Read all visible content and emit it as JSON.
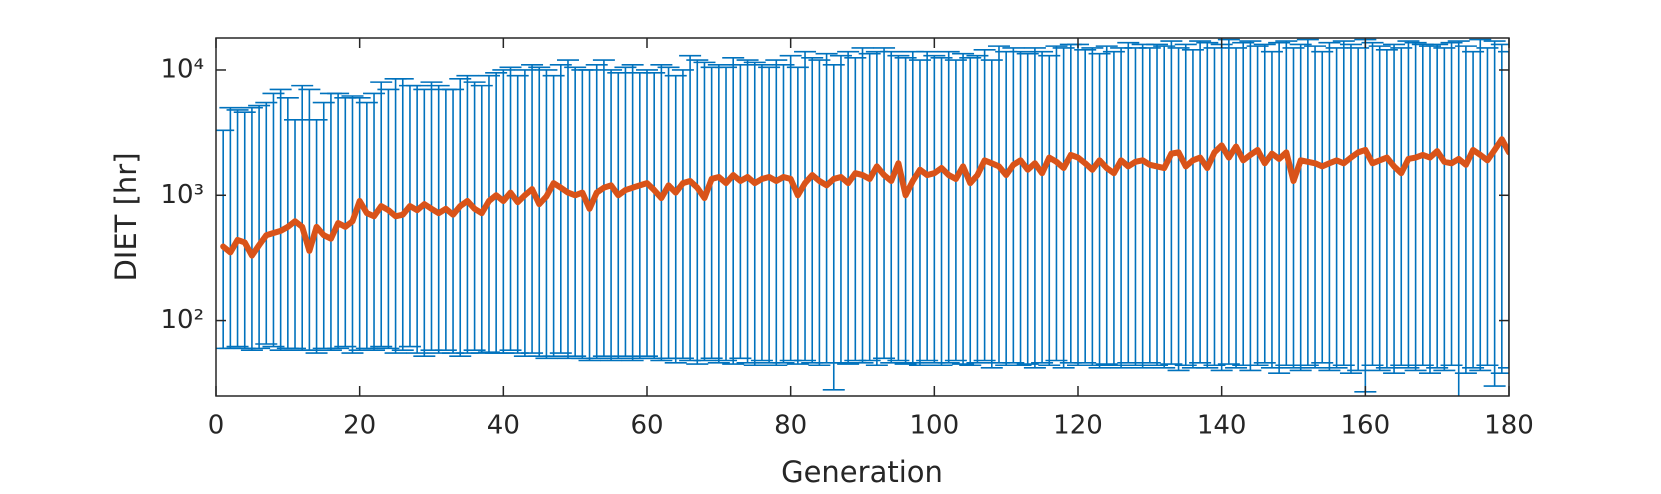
{
  "chart_data": {
    "type": "errorbar_line",
    "xlabel": "Generation",
    "ylabel": "DIET [hr]",
    "xlim": [
      0,
      180
    ],
    "xticks": [
      0,
      20,
      40,
      60,
      80,
      100,
      120,
      140,
      160,
      180
    ],
    "ylim": [
      25,
      18000
    ],
    "log_y": true,
    "yticks": [
      {
        "value": 100,
        "label": "10²"
      },
      {
        "value": 1000,
        "label": "10³"
      },
      {
        "value": 10000,
        "label": "10⁴"
      }
    ],
    "line_color": "#d95319",
    "errorbar_color": "#0072bd",
    "box": true,
    "x": [
      1,
      2,
      3,
      4,
      5,
      6,
      7,
      8,
      9,
      10,
      11,
      12,
      13,
      14,
      15,
      16,
      17,
      18,
      19,
      20,
      21,
      22,
      23,
      24,
      25,
      26,
      27,
      28,
      29,
      30,
      31,
      32,
      33,
      34,
      35,
      36,
      37,
      38,
      39,
      40,
      41,
      42,
      43,
      44,
      45,
      46,
      47,
      48,
      49,
      50,
      51,
      52,
      53,
      54,
      55,
      56,
      57,
      58,
      59,
      60,
      61,
      62,
      63,
      64,
      65,
      66,
      67,
      68,
      69,
      70,
      71,
      72,
      73,
      74,
      75,
      76,
      77,
      78,
      79,
      80,
      81,
      82,
      83,
      84,
      85,
      86,
      87,
      88,
      89,
      90,
      91,
      92,
      93,
      94,
      95,
      96,
      97,
      98,
      99,
      100,
      101,
      102,
      103,
      104,
      105,
      106,
      107,
      108,
      109,
      110,
      111,
      112,
      113,
      114,
      115,
      116,
      117,
      118,
      119,
      120,
      121,
      122,
      123,
      124,
      125,
      126,
      127,
      128,
      129,
      130,
      131,
      132,
      133,
      134,
      135,
      136,
      137,
      138,
      139,
      140,
      141,
      142,
      143,
      144,
      145,
      146,
      147,
      148,
      149,
      150,
      151,
      152,
      153,
      154,
      155,
      156,
      157,
      158,
      159,
      160,
      161,
      162,
      163,
      164,
      165,
      166,
      167,
      168,
      169,
      170,
      171,
      172,
      173,
      174,
      175,
      176,
      177,
      178,
      179,
      180
    ],
    "y": [
      390,
      350,
      440,
      420,
      330,
      400,
      480,
      500,
      520,
      560,
      620,
      560,
      360,
      560,
      480,
      450,
      600,
      560,
      620,
      900,
      720,
      680,
      820,
      760,
      680,
      700,
      820,
      760,
      850,
      780,
      720,
      780,
      700,
      820,
      900,
      780,
      720,
      900,
      1000,
      900,
      1050,
      880,
      1000,
      1120,
      850,
      980,
      1250,
      1150,
      1050,
      1000,
      1050,
      780,
      1050,
      1150,
      1200,
      1000,
      1100,
      1150,
      1200,
      1250,
      1100,
      950,
      1200,
      1050,
      1250,
      1300,
      1150,
      950,
      1350,
      1400,
      1250,
      1450,
      1300,
      1400,
      1250,
      1350,
      1400,
      1300,
      1400,
      1350,
      1000,
      1250,
      1450,
      1300,
      1200,
      1350,
      1400,
      1250,
      1500,
      1450,
      1350,
      1700,
      1450,
      1300,
      1800,
      1000,
      1300,
      1600,
      1450,
      1500,
      1650,
      1450,
      1350,
      1700,
      1250,
      1450,
      1900,
      1800,
      1700,
      1450,
      1750,
      1900,
      1600,
      1800,
      1500,
      2000,
      1850,
      1650,
      2100,
      2000,
      1800,
      1600,
      1900,
      1650,
      1500,
      1900,
      1700,
      1850,
      1900,
      1750,
      1700,
      1650,
      2150,
      2200,
      1700,
      1900,
      2000,
      1650,
      2200,
      2500,
      2000,
      2450,
      1900,
      2100,
      2300,
      1800,
      2150,
      1950,
      2200,
      1300,
      1900,
      1850,
      1800,
      1700,
      1800,
      1900,
      1800,
      2000,
      2200,
      2300,
      1800,
      1900,
      2000,
      1700,
      1500,
      1950,
      2000,
      2100,
      2000,
      2250,
      1850,
      1800,
      1950,
      1750,
      2300,
      2100,
      1900,
      2300,
      2800,
      2200
    ],
    "upper": [
      3300,
      5000,
      4800,
      4600,
      5000,
      5200,
      5500,
      6500,
      7000,
      6000,
      4000,
      7500,
      7000,
      4000,
      5500,
      6500,
      6500,
      6000,
      6200,
      6000,
      5500,
      6500,
      8000,
      7000,
      8500,
      8500,
      7500,
      7500,
      7000,
      8000,
      7500,
      7000,
      7000,
      8500,
      9000,
      8000,
      7500,
      9000,
      9500,
      10000,
      10500,
      9000,
      10000,
      11000,
      10500,
      10000,
      9000,
      11000,
      12000,
      10500,
      10000,
      10000,
      11000,
      12000,
      10000,
      9500,
      10500,
      11000,
      9500,
      10000,
      9500,
      11000,
      10500,
      9000,
      10000,
      13000,
      12000,
      11500,
      10500,
      11000,
      10500,
      12500,
      11000,
      12000,
      11500,
      11000,
      10500,
      12000,
      11000,
      13000,
      10500,
      14000,
      12500,
      12000,
      13500,
      11000,
      13000,
      14000,
      12500,
      15000,
      13500,
      14000,
      15000,
      14000,
      13000,
      12500,
      14000,
      12000,
      14000,
      13000,
      12500,
      14000,
      12000,
      13500,
      12500,
      13000,
      14500,
      12000,
      15500,
      14000,
      15000,
      14000,
      13500,
      15000,
      14000,
      13000,
      15500,
      15000,
      16000,
      16000,
      14500,
      15000,
      13500,
      15500,
      14000,
      15000,
      16500,
      15000,
      16000,
      15000,
      16000,
      15500,
      17000,
      15000,
      16000,
      14500,
      17000,
      16500,
      15000,
      16000,
      17500,
      15000,
      16500,
      17000,
      15500,
      16000,
      14000,
      16500,
      17000,
      15000,
      16000,
      17500,
      15500,
      14000,
      16500,
      15000,
      17000,
      16000,
      15000,
      17500,
      16500,
      15500,
      14500,
      16000,
      15000,
      17000,
      16500,
      16000,
      15500,
      16000,
      15000,
      16500,
      17000,
      15500,
      14000,
      17500,
      15000,
      17000,
      16000,
      14000
    ],
    "lower": [
      60,
      60,
      62,
      60,
      58,
      60,
      65,
      62,
      58,
      60,
      60,
      58,
      58,
      55,
      60,
      58,
      60,
      62,
      55,
      58,
      60,
      58,
      62,
      60,
      55,
      58,
      62,
      55,
      52,
      58,
      55,
      58,
      55,
      52,
      55,
      58,
      55,
      56,
      55,
      55,
      58,
      55,
      52,
      55,
      52,
      50,
      52,
      55,
      50,
      52,
      50,
      48,
      50,
      52,
      48,
      50,
      52,
      48,
      50,
      52,
      50,
      48,
      50,
      46,
      50,
      48,
      45,
      48,
      50,
      46,
      48,
      45,
      50,
      46,
      44,
      48,
      46,
      44,
      46,
      48,
      45,
      48,
      46,
      44,
      46,
      28,
      46,
      45,
      48,
      46,
      48,
      44,
      50,
      46,
      48,
      45,
      46,
      44,
      48,
      46,
      44,
      46,
      48,
      45,
      44,
      46,
      48,
      42,
      46,
      44,
      46,
      44,
      45,
      42,
      46,
      44,
      48,
      42,
      46,
      44,
      46,
      44,
      42,
      45,
      44,
      42,
      46,
      44,
      42,
      46,
      44,
      42,
      45,
      40,
      44,
      42,
      46,
      42,
      44,
      40,
      45,
      42,
      44,
      40,
      44,
      46,
      42,
      38,
      44,
      42,
      40,
      44,
      42,
      46,
      40,
      42,
      44,
      38,
      40,
      27,
      44,
      40,
      42,
      38,
      44,
      42,
      40,
      44,
      38,
      42,
      40,
      44,
      22,
      38,
      42,
      40,
      44,
      30,
      38,
      42
    ]
  }
}
